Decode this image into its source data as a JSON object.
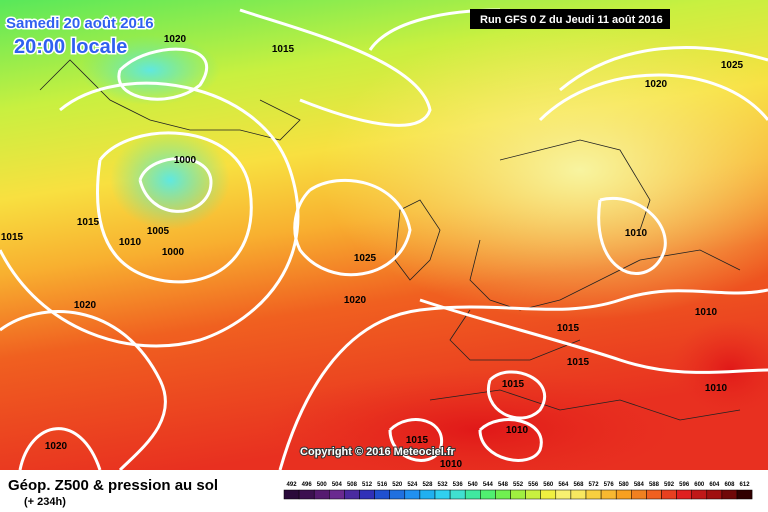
{
  "header": {
    "date": "Samedi 20 août 2016",
    "time": "20:00 locale",
    "run": "Run GFS 0 Z du Jeudi 11 août 2016"
  },
  "isobar_labels": [
    1020,
    1015,
    1025,
    1020,
    1000,
    1015,
    1015,
    1010,
    1005,
    1000,
    1025,
    1010,
    1020,
    1020,
    1010,
    1015,
    1015,
    1015,
    1010,
    1010,
    1015,
    1020,
    1010
  ],
  "copyright": "Copyright © 2016 Meteociel.fr",
  "footer": {
    "title": "Géop. Z500 & pression au sol",
    "lead": "(+ 234h)"
  },
  "scale": {
    "values": [
      492,
      496,
      500,
      504,
      508,
      512,
      516,
      520,
      524,
      528,
      532,
      536,
      540,
      544,
      548,
      552,
      556,
      560,
      564,
      568,
      572,
      576,
      580,
      584,
      588,
      592,
      596,
      600,
      604,
      608,
      612
    ],
    "colors": [
      "#2a0a3a",
      "#3c1050",
      "#551a70",
      "#6a2a90",
      "#4a2aa0",
      "#3030b8",
      "#2050d0",
      "#2070e0",
      "#2090f0",
      "#20b0f0",
      "#30d0f0",
      "#40e0d0",
      "#40e8a0",
      "#50f070",
      "#70f050",
      "#a0f040",
      "#c8f040",
      "#f0f040",
      "#f8f070",
      "#f8e860",
      "#f8d040",
      "#f8b830",
      "#f8a020",
      "#f08020",
      "#f06020",
      "#e84020",
      "#e02020",
      "#c01818",
      "#a01010",
      "#700808",
      "#300000"
    ]
  }
}
